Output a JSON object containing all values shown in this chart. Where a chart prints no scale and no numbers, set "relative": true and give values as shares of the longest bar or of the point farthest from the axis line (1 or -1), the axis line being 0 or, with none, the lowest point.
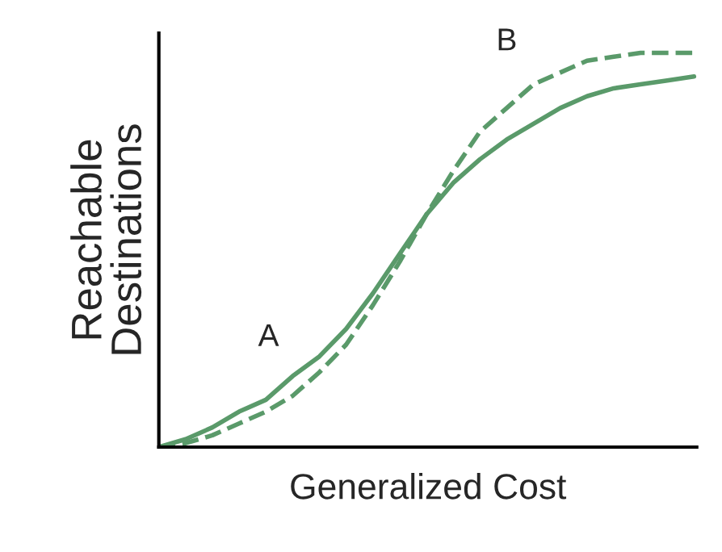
{
  "chart_data": {
    "type": "line",
    "relative": true,
    "xlabel": "Generalized Cost",
    "ylabel": "Reachable\nDestinations",
    "categories": [
      null,
      null,
      null,
      null,
      null,
      null,
      null,
      null,
      null,
      null,
      null,
      null,
      null,
      null,
      null,
      null,
      null,
      null,
      null,
      null,
      null
    ],
    "series": [
      {
        "color": "#5a9a6a",
        "line_style": "solid",
        "values": [
          0,
          0.02,
          0.05,
          0.09,
          0.12,
          0.18,
          0.23,
          0.3,
          0.39,
          0.49,
          0.59,
          0.67,
          0.73,
          0.78,
          0.82,
          0.86,
          0.89,
          0.91,
          0.92,
          0.93,
          0.94
        ]
      },
      {
        "color": "#5a9a6a",
        "line_style": "dashed",
        "values": [
          0,
          0.01,
          0.03,
          0.06,
          0.09,
          0.13,
          0.19,
          0.26,
          0.36,
          0.47,
          0.59,
          0.7,
          0.8,
          0.86,
          0.92,
          0.95,
          0.98,
          0.99,
          1,
          1,
          1
        ]
      }
    ],
    "annotations": [
      "A",
      "B"
    ],
    "legend": false,
    "grid": false,
    "marker": "none"
  }
}
